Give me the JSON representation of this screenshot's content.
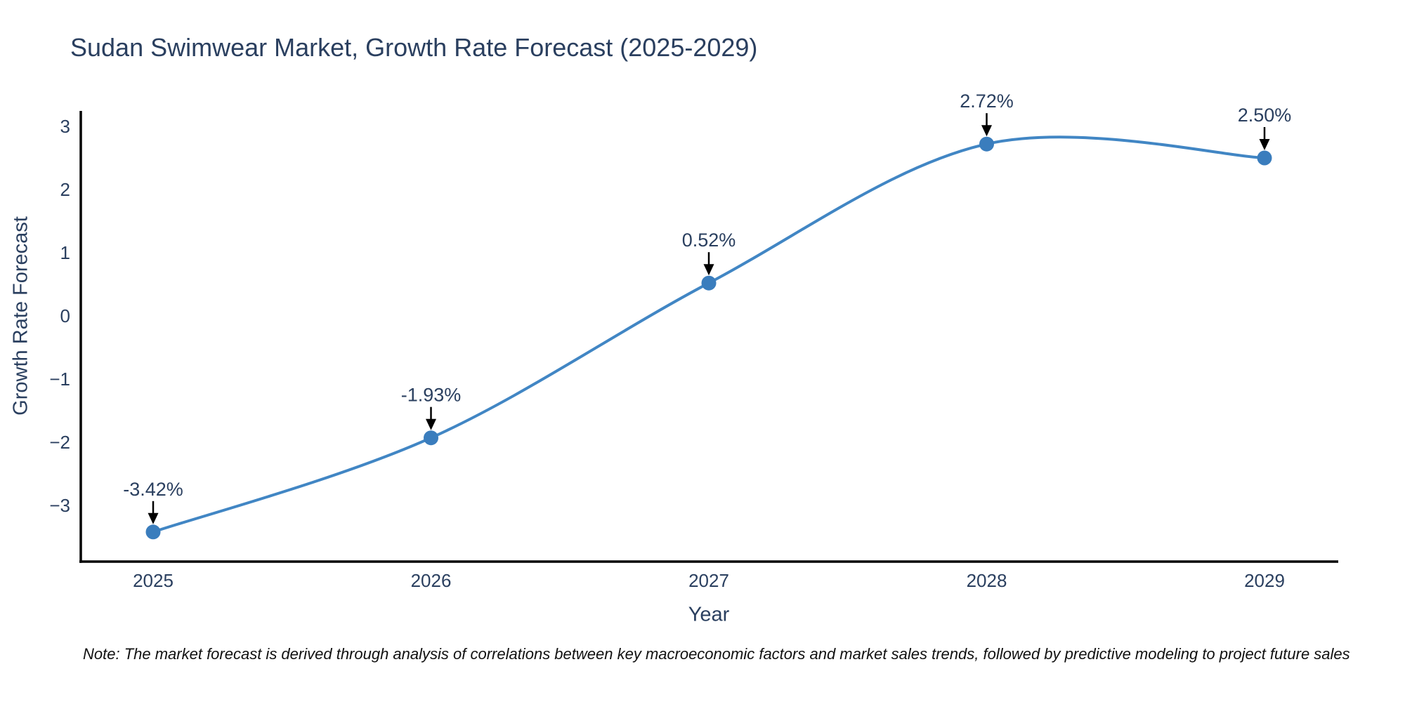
{
  "title": "Sudan Swimwear Market, Growth Rate Forecast (2025-2029)",
  "note": "Note: The market forecast is derived through analysis of correlations between key macroeconomic factors and market sales trends, followed by predictive modeling to project future sales",
  "chart_data": {
    "type": "line",
    "line_shape": "spline",
    "title": "Sudan Swimwear Market, Growth Rate Forecast (2025-2029)",
    "xlabel": "Year",
    "ylabel": "Growth Rate Forecast",
    "x": [
      2025,
      2026,
      2027,
      2028,
      2029
    ],
    "y": [
      -3.42,
      -1.93,
      0.52,
      2.72,
      2.5
    ],
    "point_labels": [
      "-3.42%",
      "-1.93%",
      "0.52%",
      "2.72%",
      "2.50%"
    ],
    "x_tick_labels": [
      "2025",
      "2026",
      "2027",
      "2028",
      "2029"
    ],
    "y_ticks": [
      3,
      2,
      1,
      0,
      -1,
      -2,
      -3
    ],
    "y_tick_labels": [
      "3",
      "2",
      "1",
      "0",
      "−1",
      "−2",
      "−3"
    ],
    "xlim": [
      2024.74,
      2029.27
    ],
    "ylim": [
      -3.89,
      3.22
    ],
    "grid": false,
    "legend": "none",
    "colors": {
      "line": "#4186c4",
      "marker": "#3a7dbd",
      "axis": "#000000",
      "tick_text": "#2a3f5f",
      "annotation_text": "#2a3f5f",
      "arrow": "#000000"
    }
  }
}
